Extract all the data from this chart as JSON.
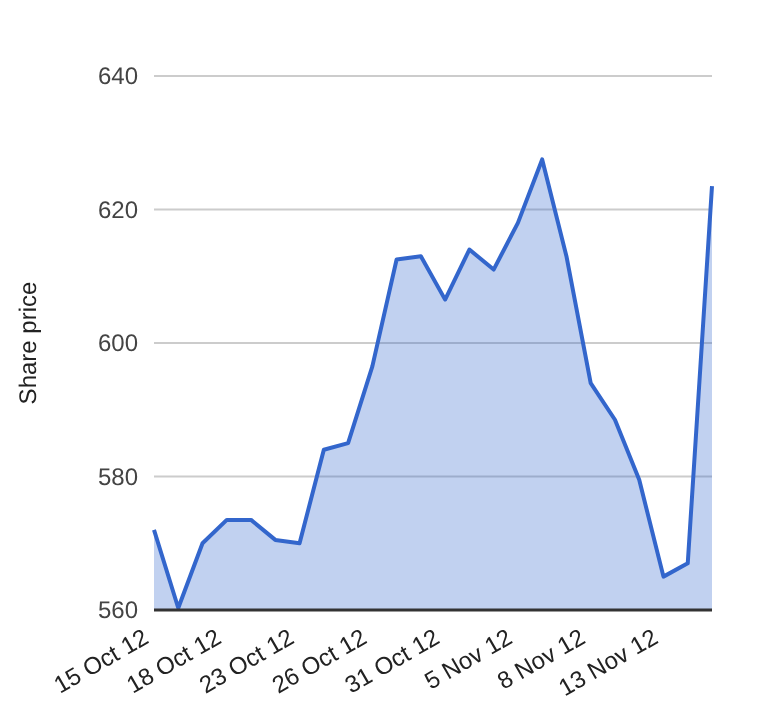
{
  "chart_data": {
    "type": "area",
    "ylabel": "Share price",
    "categories": [
      "15 Oct 12",
      null,
      null,
      "18 Oct 12",
      null,
      null,
      "23 Oct 12",
      null,
      null,
      "26 Oct 12",
      null,
      null,
      "31 Oct 12",
      null,
      null,
      "5 Nov 12",
      null,
      null,
      "8 Nov 12",
      null,
      null,
      "13 Nov 12",
      null,
      null
    ],
    "series": [
      {
        "color": "#3366cc",
        "values": [
          572,
          560.3,
          570,
          573.5,
          573.5,
          570.5,
          570,
          584,
          585,
          596.5,
          612.5,
          613,
          606.5,
          614,
          611,
          618,
          627.5,
          613,
          594,
          588.5,
          579.5,
          565,
          567,
          623.5
        ]
      }
    ],
    "ylim": [
      560,
      640
    ],
    "yticks": [
      560,
      580,
      600,
      620,
      640
    ],
    "grid": "y"
  }
}
